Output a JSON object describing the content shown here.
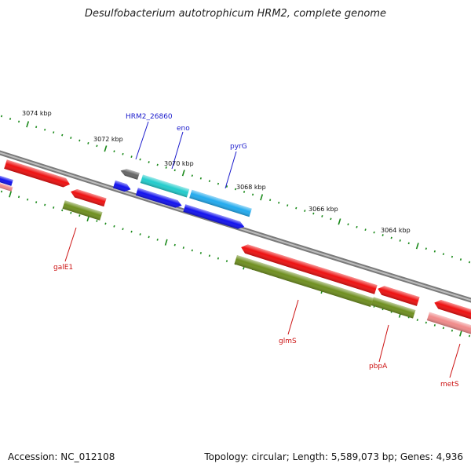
{
  "title": "Desulfobacterium autotrophicum HRM2, complete genome",
  "footer": {
    "accession": "Accession: NC_012108",
    "stats": "Topology: circular; Length: 5,589,073 bp; Genes: 4,936"
  },
  "colors": {
    "backbone": "#8a8a8a",
    "tick": "#1a8a1a",
    "red": "#ee1111",
    "pink": "#f08a8a",
    "olive": "#6f8f20",
    "blue": "#1212ee",
    "cyan": "#22cccc",
    "skyblue": "#22aaee",
    "gray": "#666666",
    "label_blue": "#1a1acc",
    "label_red": "#cc1111"
  },
  "ticks": [
    "3074 kbp",
    "3072 kbp",
    "3070 kbp",
    "3068 kbp",
    "3066 kbp",
    "3064 kbp"
  ],
  "genes_top": [
    "HRM2_26860",
    "eno",
    "pyrG"
  ],
  "genes_bottom": [
    "galE1",
    "glmS",
    "pbpA",
    "metS"
  ]
}
